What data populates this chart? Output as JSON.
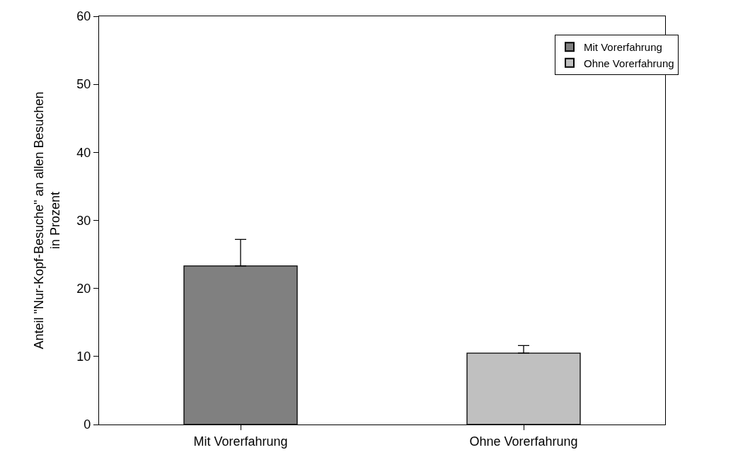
{
  "chart_data": {
    "type": "bar",
    "ylabel": "Anteil \"Nur-Kopf-Besuche\" an allen Besuchen\nin Prozent",
    "categories": [
      "Mit Vorerfahrung",
      "Ohne Vorerfahrung"
    ],
    "series": [
      {
        "name": "Mit Vorerfahrung",
        "color": "#808080",
        "values": [
          23.3,
          null
        ],
        "errors": [
          [
            23.3,
            27.2
          ],
          null
        ]
      },
      {
        "name": "Ohne Vorerfahrung",
        "color": "#c0c0c0",
        "values": [
          null,
          10.5
        ],
        "errors": [
          null,
          [
            10.5,
            11.6
          ]
        ]
      }
    ],
    "ylim": [
      0,
      60
    ],
    "yticks": [
      0,
      10,
      20,
      30,
      40,
      50,
      60
    ],
    "grid": false,
    "legend": "top right"
  }
}
